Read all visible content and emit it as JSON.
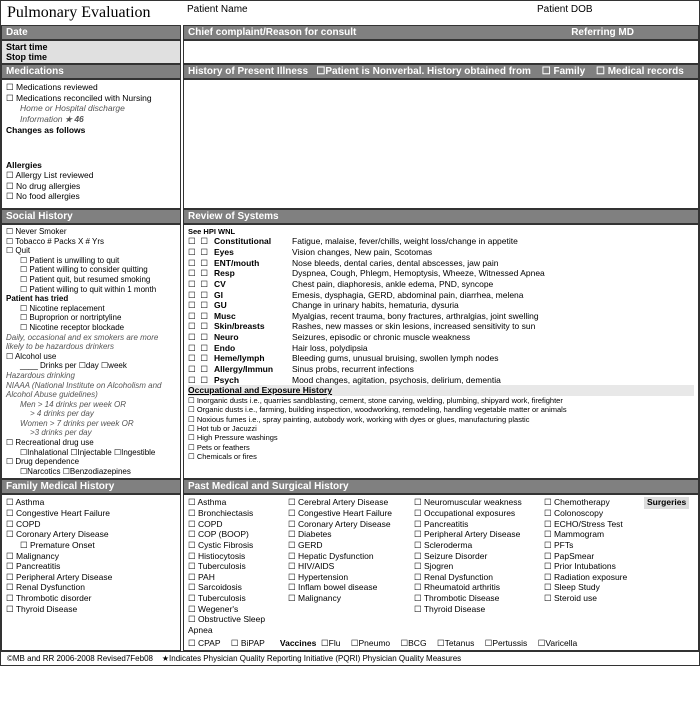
{
  "title": "Pulmonary Evaluation",
  "header_labels": {
    "patient_name": "Patient Name",
    "patient_dob": "Patient DOB"
  },
  "top": {
    "date": "Date",
    "start": "Start time",
    "stop": "Stop time",
    "chief": "Chief complaint/Reason for consult",
    "referring": "Referring MD",
    "hpi_label": "History of Present Illness",
    "hpi_nonverbal": "Patient is Nonverbal.  History obtained from",
    "hpi_family": "Family",
    "hpi_records": "Medical records"
  },
  "meds": {
    "title": "Medications",
    "items": [
      "Medications reviewed",
      "Medications reconciled with Nursing"
    ],
    "note": "Home or Hospital discharge",
    "info": "Information",
    "info_num": "46",
    "changes": "Changes as follows"
  },
  "allergies": {
    "title": "Allergies",
    "items": [
      "Allergy List reviewed",
      "No drug allergies",
      "No food allergies"
    ]
  },
  "social": {
    "title": "Social History",
    "never": "Never Smoker",
    "tobacco": "Tobacco       # Packs  X           # Yrs",
    "quit": "Quit",
    "quit_sub": [
      "Patient is unwilling to quit",
      "Patient willing to consider quitting",
      "Patient quit, but resumed smoking",
      "Patient willing to quit within 1 month"
    ],
    "tried": "Patient has tried",
    "tried_sub": [
      "Nicotine replacement",
      "Buproprion or nortriptyline",
      "Nicotine receptor blockade"
    ],
    "hazard_note": "Daily, occasional and ex smokers are more likely to be hazardous drinkers",
    "alcohol": "Alcohol use",
    "drinks_line": "____ Drinks per ☐day   ☐week",
    "hazard": "Hazardous drinking",
    "niaaa": "NIAAA (National Institute on Alcoholism and Alcohol Abuse guidelines)",
    "men": "Men > 14 drinks per week OR",
    "men2": "> 4 drinks per day",
    "women": "Women > 7 drinks per week OR",
    "women2": ">3 drinks per day",
    "rec": "Recreational drug use",
    "rec_sub": "☐Inhalational ☐Injectable ☐Ingestible",
    "dep": "Drug dependence",
    "dep_sub": "☐Narcotics  ☐Benzodiazepines"
  },
  "ros": {
    "title": "Review of Systems",
    "see": "See HPI  WNL",
    "rows": [
      {
        "n": "Constitutional",
        "d": "Fatigue, malaise, fever/chills, weight loss/change in appetite"
      },
      {
        "n": "Eyes",
        "d": "Vision changes, New pain, Scotomas"
      },
      {
        "n": "ENT/mouth",
        "d": "Nose bleeds, dental caries, dental abscesses, jaw pain"
      },
      {
        "n": "Resp",
        "d": "Dyspnea, Cough, Phlegm, Hemoptysis, Wheeze, Witnessed Apnea"
      },
      {
        "n": "CV",
        "d": "Chest pain, diaphoresis, ankle edema, PND, syncope"
      },
      {
        "n": "GI",
        "d": "Emesis, dysphagia, GERD, abdominal pain, diarrhea, melena"
      },
      {
        "n": "GU",
        "d": "Change in urinary habits, hematuria, dysuria"
      },
      {
        "n": "Musc",
        "d": "Myalgias, recent trauma, bony fractures, arthralgias, joint swelling"
      },
      {
        "n": "Skin/breasts",
        "d": "Rashes, new masses or skin lesions, increased sensitivity to sun"
      },
      {
        "n": "Neuro",
        "d": "Seizures, episodic or chronic muscle weakness"
      },
      {
        "n": "Endo",
        "d": "Hair loss, polydipsia"
      },
      {
        "n": "Heme/lymph",
        "d": "Bleeding gums, unusual bruising, swollen lymph nodes"
      },
      {
        "n": "Allergy/Immun",
        "d": "Sinus probs, recurrent infections"
      },
      {
        "n": "Psych",
        "d": "Mood changes, agitation,  psychosis, delirium, dementia"
      }
    ],
    "occ_title": "Occupational and Exposure History",
    "occ": [
      "Inorganic dusts i.e., quarries sandblasting, cement, stone carving, welding, plumbing, shipyard work, firefighter",
      "Organic dusts i.e., farming, building inspection, woodworking, remodeling, handling vegetable matter or animals",
      "Noxious fumes i.e., spray painting, autobody work, working with dyes or glues, manufacturing plastic",
      "Hot tub or Jacuzzi",
      "High Pressure washings",
      "Pets or feathers",
      "Chemicals or fires"
    ]
  },
  "fam": {
    "title": "Family Medical History",
    "items": [
      "Asthma",
      "Congestive Heart Failure",
      "COPD",
      "Coronary Artery Disease"
    ],
    "premature": "Premature Onset",
    "items2": [
      "Malignancy",
      "Pancreatitis",
      "Peripheral Artery Disease",
      "Renal Dysfunction",
      "Thrombotic disorder",
      "Thyroid Disease"
    ]
  },
  "pmh": {
    "title": "Past Medical and Surgical History",
    "surgeries": "Surgeries",
    "c1": [
      "Asthma",
      "Bronchiectasis",
      "COPD",
      "COP (BOOP)",
      "Cystic Fibrosis",
      "Histiocytosis",
      "Tuberculosis",
      "PAH",
      "Sarcoidosis",
      "Tuberculosis",
      "Wegener's",
      "Obstructive Sleep Apnea"
    ],
    "c2": [
      "Cerebral Artery Disease",
      "Congestive Heart Failure",
      "Coronary Artery Disease",
      "Diabetes",
      "GERD",
      "Hepatic Dysfunction",
      "HIV/AIDS",
      "Hypertension",
      "Inflam bowel disease",
      "Malignancy"
    ],
    "c3": [
      "Neuromuscular weakness",
      "Occupational exposures",
      "Pancreatitis",
      "Peripheral Artery Disease",
      "Scleroderma",
      "Seizure Disorder",
      "Sjogren",
      "Renal Dysfunction",
      "Rheumatoid arthritis",
      "Thrombotic Disease",
      "Thyroid Disease"
    ],
    "c4": [
      "Chemotherapy",
      "Colonoscopy",
      "ECHO/Stress Test",
      "Mammogram",
      "PFTs",
      "PapSmear",
      "Prior Intubations",
      "Radiation exposure",
      "Sleep Study",
      "Steroid use"
    ],
    "bottom": {
      "cpap": "CPAP",
      "bipap": "BiPAP",
      "vacc": "Vaccines",
      "flu": "Flu",
      "pneumo": "Pneumo",
      "bcg": "BCG",
      "tet": "Tetanus",
      "pert": "Pertussis",
      "var": "Varicella"
    }
  },
  "footer": {
    "copy": "©MB and RR 2006-2008       Revised7Feb08",
    "star": "Indicates Physician Quality Reporting Initiative (PQRI) Physician Quality Measures"
  }
}
